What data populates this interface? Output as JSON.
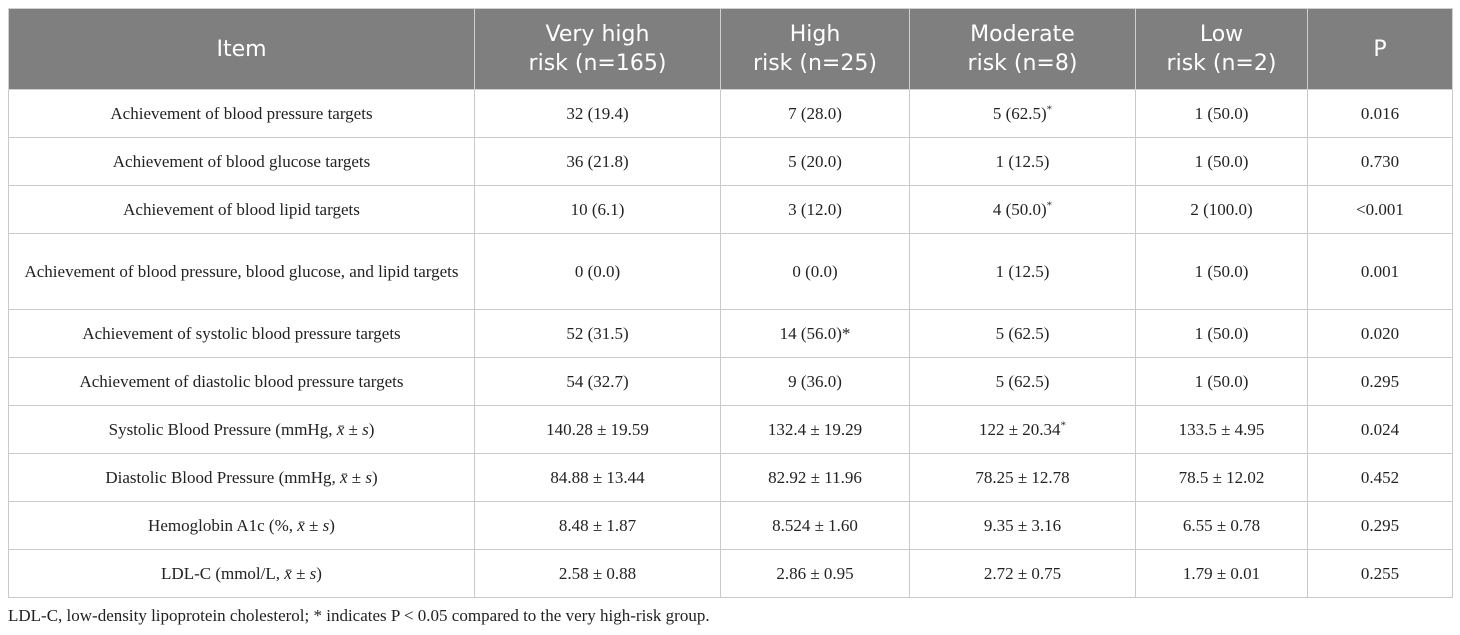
{
  "table": {
    "headers": [
      {
        "line1": "Item",
        "line2": ""
      },
      {
        "line1": "Very high",
        "line2": "risk (n=165)"
      },
      {
        "line1": "High",
        "line2": "risk (n=25)"
      },
      {
        "line1": "Moderate",
        "line2": "risk (n=8)"
      },
      {
        "line1": "Low",
        "line2": "risk (n=2)"
      },
      {
        "line1": "P",
        "line2": ""
      }
    ],
    "rows": [
      {
        "item": "Achievement of blood pressure targets",
        "vh": "32 (19.4)",
        "h": "7 (28.0)",
        "m": "5 (62.5)",
        "m_sup": "*",
        "l": "1 (50.0)",
        "p": "0.016"
      },
      {
        "item": "Achievement of blood glucose targets",
        "vh": "36 (21.8)",
        "h": "5 (20.0)",
        "m": "1 (12.5)",
        "m_sup": "",
        "l": "1 (50.0)",
        "p": "0.730"
      },
      {
        "item": "Achievement of blood lipid targets",
        "vh": "10 (6.1)",
        "h": "3 (12.0)",
        "m": "4 (50.0)",
        "m_sup": "*",
        "l": "2 (100.0)",
        "p": "<0.001"
      },
      {
        "item": "Achievement of blood pressure, blood glucose, and lipid targets",
        "vh": "0 (0.0)",
        "h": "0 (0.0)",
        "m": "1 (12.5)",
        "m_sup": "",
        "l": "1 (50.0)",
        "p": "0.001"
      },
      {
        "item": "Achievement of systolic blood pressure targets",
        "vh": "52 (31.5)",
        "h": "14 (56.0)*",
        "m": "5 (62.5)",
        "m_sup": "",
        "l": "1 (50.0)",
        "p": "0.020"
      },
      {
        "item": "Achievement of diastolic blood pressure targets",
        "vh": "54 (32.7)",
        "h": "9 (36.0)",
        "m": "5 (62.5)",
        "m_sup": "",
        "l": "1 (50.0)",
        "p": "0.295"
      },
      {
        "item_pre": "Systolic Blood Pressure (mmHg, ",
        "xbar": "x̄",
        "pm": " ± ",
        "s": "s",
        "item_post": ")",
        "vh": "140.28 ± 19.59",
        "h": "132.4 ± 19.29",
        "m": "122 ± 20.34",
        "m_sup": "*",
        "l": "133.5 ± 4.95",
        "p": "0.024"
      },
      {
        "item_pre": "Diastolic Blood Pressure (mmHg, ",
        "xbar": "x̄",
        "pm": " ± ",
        "s": "s",
        "item_post": ")",
        "vh": "84.88 ± 13.44",
        "h": "82.92 ± 11.96",
        "m": "78.25 ± 12.78",
        "m_sup": "",
        "l": "78.5 ± 12.02",
        "p": "0.452"
      },
      {
        "item_pre": "Hemoglobin A1c (%, ",
        "xbar": "x̄",
        "pm": " ± ",
        "s": "s",
        "item_post": ")",
        "vh": "8.48 ± 1.87",
        "h": "8.524 ± 1.60",
        "m": "9.35 ± 3.16",
        "m_sup": "",
        "l": "6.55 ± 0.78",
        "p": "0.295"
      },
      {
        "item_pre": "LDL-C (mmol/L, ",
        "xbar": "x̄",
        "pm": " ± ",
        "s": "s",
        "item_post": ")",
        "vh": "2.58 ± 0.88",
        "h": "2.86 ± 0.95",
        "m": "2.72 ± 0.75",
        "m_sup": "",
        "l": "1.79 ± 0.01",
        "p": "0.255"
      }
    ]
  },
  "footnote": "LDL-C, low-density lipoprotein cholesterol; * indicates P < 0.05 compared to the very high-risk group."
}
